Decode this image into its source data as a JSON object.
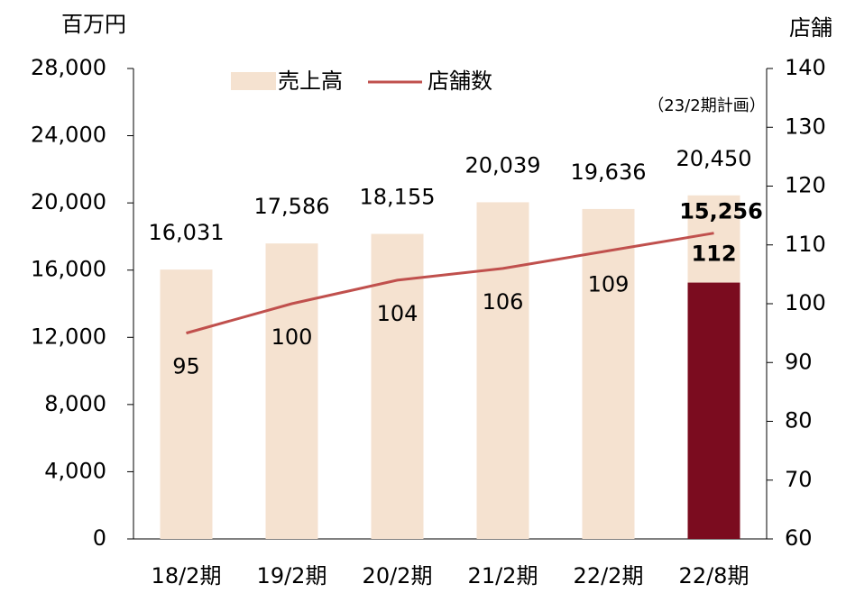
{
  "chart_data": {
    "type": "bar",
    "y_label": "百万円",
    "y2_label": "店舗",
    "annotation": "（23/2期計画）",
    "categories": [
      "18/2期",
      "19/2期",
      "20/2期",
      "21/2期",
      "22/2期",
      "22/8期"
    ],
    "series": [
      {
        "name": "売上高",
        "type": "bar",
        "color": "#f5e2d0",
        "values": [
          16031,
          17586,
          18155,
          20039,
          19636,
          20450
        ],
        "value_labels": [
          "16,031",
          "17,586",
          "18,155",
          "20,039",
          "19,636",
          "20,450"
        ]
      },
      {
        "type": "bar",
        "color": "#7b0c1f",
        "values": [
          null,
          null,
          null,
          null,
          null,
          15256
        ],
        "value_labels": [
          null,
          null,
          null,
          null,
          null,
          "15,256"
        ]
      },
      {
        "name": "店舗数",
        "type": "line",
        "axis": "y2",
        "color": "#c0504d",
        "values": [
          95,
          100,
          104,
          106,
          109,
          112
        ]
      }
    ],
    "ylim": [
      0,
      28000
    ],
    "yticks": [
      0,
      {
        "value": 4000,
        "label": "4,000"
      },
      {
        "value": 8000,
        "label": "8,000"
      },
      {
        "value": 12000,
        "label": "12,000"
      },
      {
        "value": 16000,
        "label": "16,000"
      },
      {
        "value": 20000,
        "label": "20,000"
      },
      {
        "value": 24000,
        "label": "24,000"
      },
      {
        "value": 28000,
        "label": "28,000"
      }
    ],
    "y2lim": [
      60,
      140
    ],
    "y2ticks": [
      60,
      70,
      80,
      90,
      100,
      110,
      120,
      130,
      140
    ],
    "grid": false
  }
}
